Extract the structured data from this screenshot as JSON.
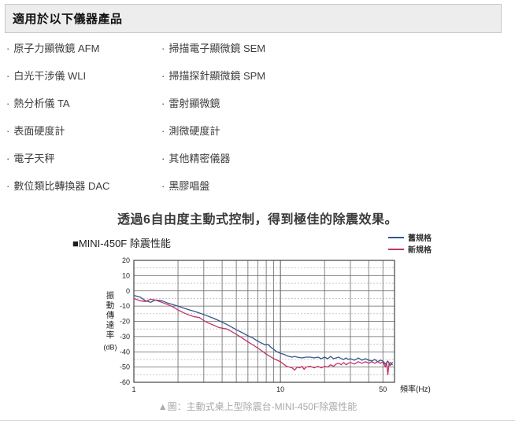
{
  "page": {
    "section_title": "適用於以下儀器產品",
    "caption": "▲圖：主動式桌上型除震台-MINI-450F除震性能"
  },
  "instruments": {
    "bullet": "·",
    "left": [
      "原子力顯微鏡 AFM",
      "白光干涉儀 WLI",
      "熱分析儀 TA",
      "表面硬度計",
      "電子天秤",
      "數位類比轉換器 DAC"
    ],
    "right": [
      "掃描電子顯微鏡 SEM",
      "掃描探針顯微鏡 SPM",
      "雷射顯微鏡",
      "測微硬度計",
      "其他精密儀器",
      "黑膠唱盤"
    ]
  },
  "chart_section": {
    "headline": "透過6自由度主動式控制，得到極佳的除震效果。",
    "chart_label": "■MINI-450F 除震性能"
  },
  "chart_data": {
    "type": "line",
    "title": "MINI-450F 除震性能",
    "xlabel": "頻率(Hz)",
    "ylabel": "振動傳達率",
    "ylabel_unit": "(dB)",
    "x_scale": "log",
    "xlim": [
      1,
      60
    ],
    "ylim": [
      -60,
      20
    ],
    "x_ticks": [
      1,
      10,
      50
    ],
    "y_ticks": [
      20,
      10,
      0,
      -10,
      -20,
      -30,
      -40,
      -50,
      -60
    ],
    "grid": true,
    "legend_position": "top-right",
    "colors": {
      "old": "#35558e",
      "new": "#bf3468"
    },
    "series": [
      {
        "name": "舊規格",
        "color_key": "old",
        "points": [
          [
            1,
            -3
          ],
          [
            1.1,
            -4
          ],
          [
            1.2,
            -6.5
          ],
          [
            1.3,
            -7.5
          ],
          [
            1.4,
            -6
          ],
          [
            1.55,
            -6.5
          ],
          [
            1.7,
            -8
          ],
          [
            2,
            -10
          ],
          [
            2.3,
            -12
          ],
          [
            2.6,
            -13.5
          ],
          [
            3,
            -15.5
          ],
          [
            3.5,
            -18
          ],
          [
            4,
            -20.5
          ],
          [
            4.5,
            -23
          ],
          [
            5,
            -25.5
          ],
          [
            5.5,
            -27.5
          ],
          [
            6,
            -29.5
          ],
          [
            6.5,
            -31
          ],
          [
            7,
            -33
          ],
          [
            7.5,
            -34.5
          ],
          [
            7.9,
            -35.5
          ],
          [
            8.2,
            -35
          ],
          [
            8.6,
            -37
          ],
          [
            9,
            -38.5
          ],
          [
            9.5,
            -40
          ],
          [
            10,
            -41
          ],
          [
            10.5,
            -41.5
          ],
          [
            11,
            -42.5
          ],
          [
            11.5,
            -43
          ],
          [
            12,
            -43.5
          ],
          [
            12.5,
            -43
          ],
          [
            13,
            -43.5
          ],
          [
            14,
            -44
          ],
          [
            15,
            -43.5
          ],
          [
            16,
            -43.5
          ],
          [
            17,
            -44
          ],
          [
            18,
            -43.5
          ],
          [
            19,
            -44.5
          ],
          [
            20,
            -43.5
          ],
          [
            21,
            -44.5
          ],
          [
            22,
            -43
          ],
          [
            23,
            -44.5
          ],
          [
            24,
            -44
          ],
          [
            25,
            -43.5
          ],
          [
            26,
            -44.5
          ],
          [
            27,
            -45
          ],
          [
            28,
            -44
          ],
          [
            29,
            -45
          ],
          [
            30,
            -44.5
          ],
          [
            32,
            -45.5
          ],
          [
            34,
            -44
          ],
          [
            36,
            -45.5
          ],
          [
            38,
            -44.5
          ],
          [
            40,
            -45.5
          ],
          [
            42,
            -46
          ],
          [
            44,
            -45
          ],
          [
            46,
            -46.5
          ],
          [
            48,
            -45.5
          ],
          [
            50,
            -46
          ],
          [
            52,
            -48
          ],
          [
            54,
            -46
          ],
          [
            56,
            -49
          ],
          [
            58,
            -47
          ]
        ]
      },
      {
        "name": "新規格",
        "color_key": "new",
        "points": [
          [
            1,
            -5
          ],
          [
            1.1,
            -6.5
          ],
          [
            1.2,
            -7
          ],
          [
            1.3,
            -5.5
          ],
          [
            1.4,
            -6
          ],
          [
            1.55,
            -7.5
          ],
          [
            1.7,
            -9
          ],
          [
            1.85,
            -10.5
          ],
          [
            2,
            -12.5
          ],
          [
            2.2,
            -14.5
          ],
          [
            2.4,
            -16
          ],
          [
            2.6,
            -17
          ],
          [
            2.8,
            -17.5
          ],
          [
            3,
            -19.5
          ],
          [
            3.2,
            -21
          ],
          [
            3.5,
            -22.5
          ],
          [
            3.8,
            -24
          ],
          [
            4,
            -24.5
          ],
          [
            4.3,
            -25
          ],
          [
            4.6,
            -26.5
          ],
          [
            5,
            -28.5
          ],
          [
            5.3,
            -30
          ],
          [
            5.6,
            -31.5
          ],
          [
            6,
            -33.5
          ],
          [
            6.5,
            -35.5
          ],
          [
            7,
            -37.5
          ],
          [
            7.5,
            -39.5
          ],
          [
            8,
            -41.5
          ],
          [
            8.5,
            -43
          ],
          [
            9,
            -44.5
          ],
          [
            9.5,
            -45.5
          ],
          [
            10,
            -46.5
          ],
          [
            10.5,
            -48
          ],
          [
            11,
            -49.5
          ],
          [
            11.5,
            -50
          ],
          [
            12,
            -50.5
          ],
          [
            12.5,
            -52
          ],
          [
            13,
            -50
          ],
          [
            13.5,
            -50.5
          ],
          [
            14,
            -49.5
          ],
          [
            14.5,
            -51.5
          ],
          [
            15,
            -50
          ],
          [
            16,
            -49.5
          ],
          [
            17,
            -50.5
          ],
          [
            18,
            -49.5
          ],
          [
            19,
            -50.5
          ],
          [
            20,
            -49.5
          ],
          [
            21,
            -50
          ],
          [
            22,
            -48.5
          ],
          [
            23,
            -49.5
          ],
          [
            24,
            -48
          ],
          [
            25,
            -47.5
          ],
          [
            26,
            -48.5
          ],
          [
            27,
            -47
          ],
          [
            28,
            -48.5
          ],
          [
            29,
            -47.5
          ],
          [
            30,
            -47
          ],
          [
            32,
            -48
          ],
          [
            34,
            -46.5
          ],
          [
            36,
            -47.5
          ],
          [
            38,
            -46.5
          ],
          [
            40,
            -47.5
          ],
          [
            42,
            -46.5
          ],
          [
            44,
            -47.5
          ],
          [
            46,
            -46.5
          ],
          [
            48,
            -47.5
          ],
          [
            50,
            -46.5
          ],
          [
            52,
            -50
          ],
          [
            53,
            -47
          ],
          [
            54,
            -55
          ],
          [
            55,
            -48
          ],
          [
            56,
            -47
          ],
          [
            58,
            -48.5
          ]
        ]
      }
    ]
  }
}
